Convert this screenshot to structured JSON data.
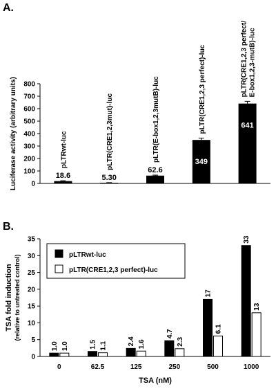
{
  "chart_data": [
    {
      "type": "bar",
      "panel_label": "A.",
      "ylabel": "Luciferase activity (arbitrary units)",
      "categories": [
        "pLTRwt-luc",
        "pLTR(CRE1,2,3mut)-luc",
        "pLTR(E-box1,2,3mutB)-luc",
        "pLTR(CRE1,2,3 perfect)-luc",
        "pLTR(CRE1,2,3 perfect/\nE-box1,2,3-mutB)-luc"
      ],
      "values": [
        18.6,
        5.3,
        62.6,
        349,
        641
      ],
      "value_labels": [
        "18.6",
        "5.30",
        "62.6",
        "349",
        "641"
      ],
      "errors": [
        3,
        1,
        4,
        15,
        18
      ],
      "color": "#000000",
      "ylim": [
        0,
        800
      ],
      "yticks": [
        0,
        100,
        200,
        300,
        400,
        500,
        600,
        700,
        800
      ]
    },
    {
      "type": "grouped_bar",
      "panel_label": "B.",
      "ylabel": "TSA fold induction",
      "ylabel_note": "(relative to untreated control)",
      "xlabel": "TSA (nM)",
      "categories": [
        "0",
        "62.5",
        "125",
        "250",
        "500",
        "1000"
      ],
      "series": [
        {
          "name": "pLTRwt-luc",
          "color": "#000000",
          "values": [
            1.0,
            1.5,
            2.4,
            4.7,
            17,
            33
          ],
          "value_labels": [
            "1.0",
            "1.5",
            "2.4",
            "4.7",
            "17",
            "33"
          ]
        },
        {
          "name": "pLTR(CRE1,2,3 perfect)-luc",
          "color": "#ffffff",
          "values": [
            1.0,
            1.1,
            1.6,
            2.3,
            6.1,
            13
          ],
          "value_labels": [
            "1.0",
            "1.1",
            "1.6",
            "2.3",
            "6.1",
            "13"
          ]
        }
      ],
      "ylim": [
        0,
        35
      ],
      "yticks": [
        0,
        5,
        10,
        15,
        20,
        25,
        30,
        35
      ],
      "legend": "upper-left"
    }
  ]
}
